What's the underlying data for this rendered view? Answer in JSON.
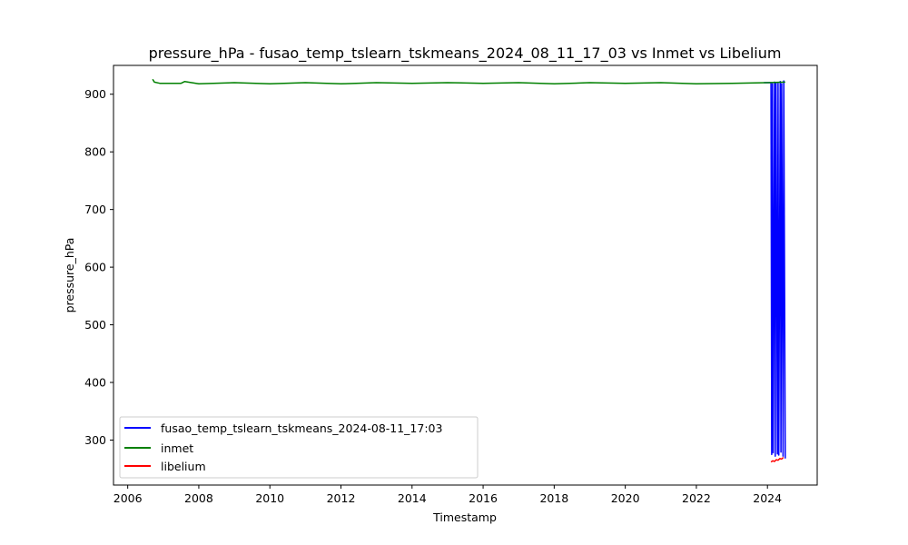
{
  "chart_data": {
    "type": "line",
    "title": "pressure_hPa - fusao_temp_tslearn_tskmeans_2024_08_11_17_03 vs Inmet vs Libelium",
    "xlabel": "Timestamp",
    "ylabel": "pressure_hPa",
    "xlim": [
      2005.6,
      2025.4
    ],
    "ylim": [
      222,
      950
    ],
    "x_ticks": [
      2006,
      2008,
      2010,
      2012,
      2014,
      2016,
      2018,
      2020,
      2022,
      2024
    ],
    "x_tick_labels": [
      "2006",
      "2008",
      "2010",
      "2012",
      "2014",
      "2016",
      "2018",
      "2020",
      "2022",
      "2024"
    ],
    "y_ticks": [
      300,
      400,
      500,
      600,
      700,
      800,
      900
    ],
    "y_tick_labels": [
      "300",
      "400",
      "500",
      "600",
      "700",
      "800",
      "900"
    ],
    "grid": false,
    "legend_position": "lower-left",
    "series": [
      {
        "name": "fusao_temp_tslearn_tskmeans_2024-08-11_17:03",
        "color": "#0000ff",
        "x": [
          2023.9,
          2024.1,
          2024.12,
          2024.14,
          2024.16,
          2024.2,
          2024.22,
          2024.24,
          2024.28,
          2024.3,
          2024.32,
          2024.36,
          2024.38,
          2024.4,
          2024.44,
          2024.46,
          2024.5
        ],
        "y": [
          920,
          920,
          275,
          918,
          278,
          921,
          272,
          920,
          276,
          919,
          274,
          922,
          279,
          918,
          272,
          923,
          268
        ]
      },
      {
        "name": "inmet",
        "color": "#008000",
        "x": [
          2006.7,
          2006.75,
          2006.9,
          2007.5,
          2007.6,
          2008.0,
          2009.0,
          2010.0,
          2011.0,
          2012.0,
          2013.0,
          2014.0,
          2015.0,
          2016.0,
          2017.0,
          2018.0,
          2019.0,
          2020.0,
          2021.0,
          2022.0,
          2023.0,
          2024.0,
          2024.5
        ],
        "y": [
          926,
          921,
          919,
          919,
          922,
          918,
          920,
          918,
          920,
          918,
          920,
          919,
          920,
          919,
          920,
          918,
          920,
          919,
          920,
          918,
          919,
          920,
          921
        ]
      },
      {
        "name": "libelium",
        "color": "#ff0000",
        "x": [
          2024.1,
          2024.15,
          2024.2,
          2024.25,
          2024.3,
          2024.35,
          2024.4,
          2024.45
        ],
        "y": [
          262,
          264,
          263,
          266,
          265,
          268,
          267,
          270
        ]
      }
    ]
  }
}
